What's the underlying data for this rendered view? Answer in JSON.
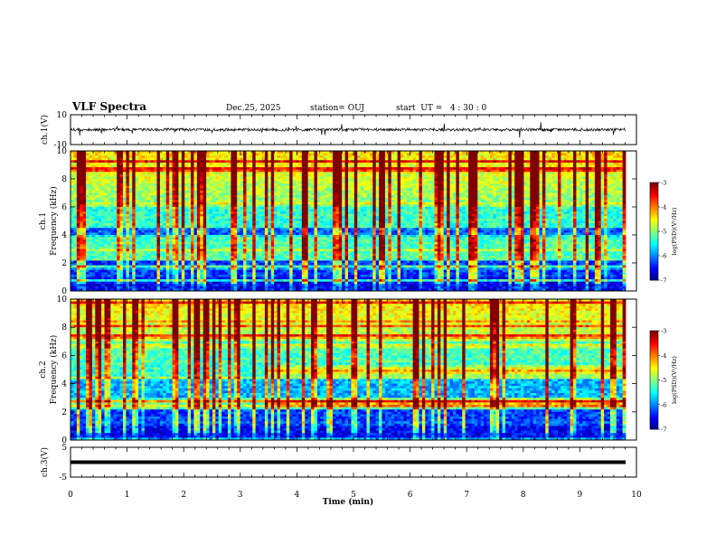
{
  "header": {
    "title": "VLF Spectra",
    "date": "Dec.25, 2025",
    "station": "station= OUJ",
    "start_ut": "start  UT =   4 : 30 : 0"
  },
  "chart_data": [
    {
      "type": "line",
      "panel": "ch1-waveform",
      "ylabel": "ch.1(V)",
      "ylim": [
        -10,
        10
      ],
      "yticks": [
        "10",
        "-10"
      ],
      "xlim": [
        0,
        10
      ],
      "baseline": 0,
      "noise_amplitude": 1.2,
      "color": "#000000"
    },
    {
      "type": "heatmap",
      "panel": "ch1-spectrogram",
      "ylabel": "ch.1",
      "ylabel2": "Frequency (kHz)",
      "ylim": [
        0,
        10
      ],
      "yticks": [
        "0",
        "2",
        "4",
        "6",
        "8",
        "10"
      ],
      "xlim": [
        0,
        10
      ],
      "colorbar": {
        "label": "log(PSD)(V²/Hz)",
        "ticks": [
          "-3",
          "-4",
          "-5",
          "-6",
          "-7"
        ],
        "range": [
          -7,
          -3
        ]
      }
    },
    {
      "type": "heatmap",
      "panel": "ch2-spectrogram",
      "ylabel": "ch.2",
      "ylabel2": "Frequency (kHz)",
      "ylim": [
        0,
        10
      ],
      "yticks": [
        "0",
        "2",
        "4",
        "6",
        "8",
        "10"
      ],
      "xlim": [
        0,
        10
      ],
      "bands_from_min": 3.4,
      "bands_kHz": [
        2.6,
        4.9
      ],
      "colorbar": {
        "label": "log(PSD)(V²/Hz)",
        "ticks": [
          "-3",
          "-4",
          "-5",
          "-6",
          "-7"
        ],
        "range": [
          -7,
          -3
        ]
      }
    },
    {
      "type": "line",
      "panel": "ch3-waveform",
      "ylabel": "ch.3(V)",
      "ylim": [
        -5,
        5
      ],
      "yticks": [
        "5",
        "-5"
      ],
      "xlim": [
        0,
        10
      ],
      "baseline": 0,
      "color": "#000000"
    }
  ],
  "xaxis": {
    "label": "Time  (min)",
    "ticks": [
      "0",
      "1",
      "2",
      "3",
      "4",
      "5",
      "6",
      "7",
      "8",
      "9",
      "10"
    ]
  },
  "colors": {
    "axis": "#000000",
    "background": "#ffffff"
  }
}
